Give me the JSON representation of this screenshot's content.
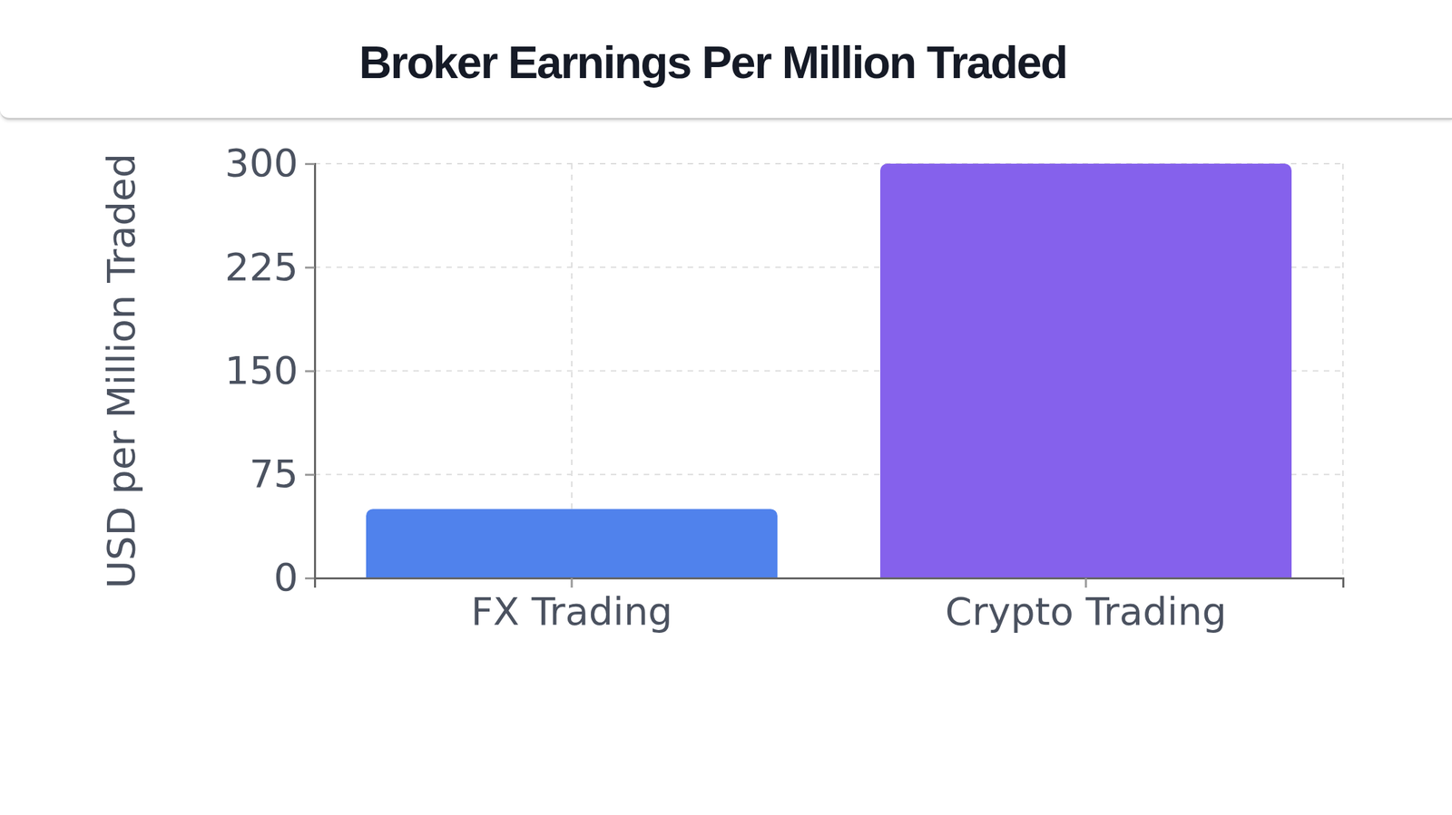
{
  "chart_data": {
    "type": "bar",
    "title": "Broker Earnings Per Million Traded",
    "y_label": "USD per Million Traded",
    "categories": [
      "FX Trading",
      "Crypto Trading"
    ],
    "values": [
      50,
      300
    ],
    "colors": [
      "#5082ec",
      "#8561ec"
    ],
    "ylim": [
      0,
      300
    ],
    "yticks": [
      0,
      75,
      150,
      225,
      300
    ],
    "grid": true
  }
}
